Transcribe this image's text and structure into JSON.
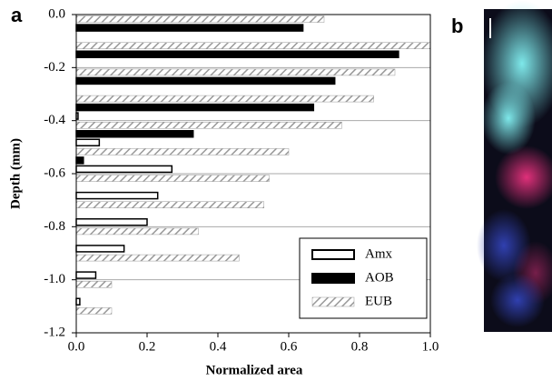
{
  "panels": [
    "a",
    "b"
  ],
  "chart_data": {
    "type": "hbar",
    "x_label": "Normalized area",
    "y_label": "Depth (mm)",
    "y": [
      -0.05,
      -0.15,
      -0.25,
      -0.35,
      -0.45,
      -0.55,
      -0.65,
      -0.75,
      -0.85,
      -0.95,
      -1.05,
      -1.15
    ],
    "series": [
      {
        "name": "Amx",
        "color": "#ffffff",
        "values": [
          null,
          null,
          null,
          0.005,
          0.065,
          0.27,
          0.23,
          0.2,
          0.135,
          0.055,
          0.01,
          null
        ]
      },
      {
        "name": "AOB",
        "color": "#000000",
        "values": [
          0.64,
          0.91,
          0.73,
          0.67,
          0.33,
          0.02,
          null,
          null,
          null,
          null,
          null,
          null
        ]
      },
      {
        "name": "EUB",
        "color": "#a8a8a8",
        "hatch": true,
        "values": [
          0.7,
          1.0,
          0.9,
          0.84,
          0.75,
          0.6,
          0.545,
          0.53,
          0.345,
          0.46,
          0.1,
          0.1
        ]
      }
    ],
    "xlim": [
      0,
      1
    ],
    "ylim": [
      -1.2,
      0
    ],
    "xticks": [
      {
        "value": 0,
        "label": "0.0"
      },
      0.2,
      0.4,
      0.6,
      0.8,
      {
        "value": 1,
        "label": "1.0"
      }
    ],
    "yticks": [
      {
        "value": 0,
        "label": "0.0"
      },
      -0.2,
      -0.4,
      -0.6,
      -0.8,
      {
        "value": -1,
        "label": "-1.0"
      },
      -1.2
    ],
    "grid": true,
    "legend": "lower right"
  }
}
